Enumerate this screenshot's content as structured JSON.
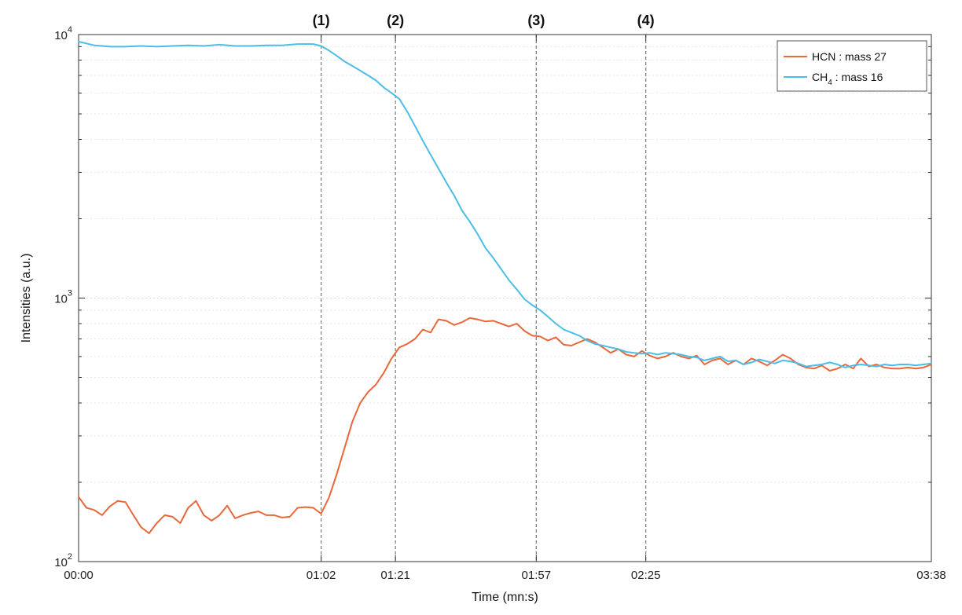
{
  "chart_data": {
    "type": "line",
    "title": "",
    "xlabel": "Time (mn:s)",
    "ylabel": "Intensities (a.u.)",
    "yscale": "log",
    "ylim": [
      100,
      10000
    ],
    "xlim": [
      "00:00",
      "03:38"
    ],
    "x_ticks": [
      "00:00",
      "01:02",
      "01:21",
      "01:57",
      "02:25",
      "03:38"
    ],
    "y_ticks": [
      {
        "value": 100,
        "base": "10",
        "exp": "2"
      },
      {
        "value": 1000,
        "base": "10",
        "exp": "3"
      },
      {
        "value": 10000,
        "base": "10",
        "exp": "4"
      }
    ],
    "grid": "dotted",
    "legend_position": "top-right",
    "events": [
      {
        "label": "(1)",
        "time": "01:02"
      },
      {
        "label": "(2)",
        "time": "01:21"
      },
      {
        "label": "(3)",
        "time": "01:57"
      },
      {
        "label": "(4)",
        "time": "02:25"
      }
    ],
    "series": [
      {
        "name": "HCN : mass 27",
        "legend_main": "HCN : mass 27",
        "legend_sub": "",
        "legend_tail": "",
        "color": "#e8683a",
        "points": [
          [
            "00:00",
            176
          ],
          [
            "00:02",
            160
          ],
          [
            "00:04",
            157
          ],
          [
            "00:06",
            150
          ],
          [
            "00:08",
            162
          ],
          [
            "00:10",
            170
          ],
          [
            "00:12",
            168
          ],
          [
            "00:14",
            150
          ],
          [
            "00:16",
            135
          ],
          [
            "00:18",
            128
          ],
          [
            "00:20",
            140
          ],
          [
            "00:22",
            150
          ],
          [
            "00:24",
            148
          ],
          [
            "00:26",
            140
          ],
          [
            "00:28",
            160
          ],
          [
            "00:30",
            170
          ],
          [
            "00:32",
            150
          ],
          [
            "00:34",
            143
          ],
          [
            "00:36",
            150
          ],
          [
            "00:38",
            163
          ],
          [
            "00:40",
            146
          ],
          [
            "00:42",
            150
          ],
          [
            "00:44",
            153
          ],
          [
            "00:46",
            155
          ],
          [
            "00:48",
            150
          ],
          [
            "00:50",
            150
          ],
          [
            "00:52",
            147
          ],
          [
            "00:54",
            148
          ],
          [
            "00:56",
            160
          ],
          [
            "00:58",
            161
          ],
          [
            "01:00",
            160
          ],
          [
            "01:02",
            152
          ],
          [
            "01:04",
            175
          ],
          [
            "01:06",
            215
          ],
          [
            "01:08",
            270
          ],
          [
            "01:10",
            340
          ],
          [
            "01:12",
            400
          ],
          [
            "01:14",
            440
          ],
          [
            "01:16",
            470
          ],
          [
            "01:18",
            520
          ],
          [
            "01:20",
            590
          ],
          [
            "01:22",
            650
          ],
          [
            "01:24",
            670
          ],
          [
            "01:26",
            700
          ],
          [
            "01:28",
            760
          ],
          [
            "01:30",
            740
          ],
          [
            "01:32",
            830
          ],
          [
            "01:34",
            820
          ],
          [
            "01:36",
            790
          ],
          [
            "01:38",
            810
          ],
          [
            "01:40",
            840
          ],
          [
            "01:42",
            830
          ],
          [
            "01:44",
            815
          ],
          [
            "01:46",
            820
          ],
          [
            "01:48",
            800
          ],
          [
            "01:50",
            780
          ],
          [
            "01:52",
            800
          ],
          [
            "01:54",
            750
          ],
          [
            "01:56",
            720
          ],
          [
            "01:58",
            715
          ],
          [
            "02:00",
            690
          ],
          [
            "02:02",
            710
          ],
          [
            "02:04",
            665
          ],
          [
            "02:06",
            660
          ],
          [
            "02:08",
            680
          ],
          [
            "02:10",
            700
          ],
          [
            "02:12",
            680
          ],
          [
            "02:14",
            650
          ],
          [
            "02:16",
            620
          ],
          [
            "02:18",
            640
          ],
          [
            "02:20",
            610
          ],
          [
            "02:22",
            600
          ],
          [
            "02:24",
            630
          ],
          [
            "02:26",
            605
          ],
          [
            "02:28",
            590
          ],
          [
            "02:30",
            600
          ],
          [
            "02:32",
            620
          ],
          [
            "02:34",
            600
          ],
          [
            "02:36",
            590
          ],
          [
            "02:38",
            605
          ],
          [
            "02:40",
            560
          ],
          [
            "02:42",
            580
          ],
          [
            "02:44",
            590
          ],
          [
            "02:46",
            560
          ],
          [
            "02:48",
            580
          ],
          [
            "02:50",
            560
          ],
          [
            "02:52",
            590
          ],
          [
            "02:54",
            575
          ],
          [
            "02:56",
            555
          ],
          [
            "02:58",
            580
          ],
          [
            "03:00",
            610
          ],
          [
            "03:02",
            590
          ],
          [
            "03:04",
            560
          ],
          [
            "03:06",
            545
          ],
          [
            "03:08",
            540
          ],
          [
            "03:10",
            555
          ],
          [
            "03:12",
            530
          ],
          [
            "03:14",
            540
          ],
          [
            "03:16",
            560
          ],
          [
            "03:18",
            540
          ],
          [
            "03:20",
            590
          ],
          [
            "03:22",
            550
          ],
          [
            "03:24",
            560
          ],
          [
            "03:26",
            545
          ],
          [
            "03:28",
            540
          ],
          [
            "03:30",
            540
          ],
          [
            "03:32",
            545
          ],
          [
            "03:34",
            540
          ],
          [
            "03:36",
            545
          ],
          [
            "03:38",
            560
          ]
        ]
      },
      {
        "name": "CH4 : mass 16",
        "legend_main": "CH",
        "legend_sub": "4",
        "legend_tail": " : mass 16",
        "color": "#4cbde8",
        "points": [
          [
            "00:00",
            9400
          ],
          [
            "00:04",
            9100
          ],
          [
            "00:08",
            9000
          ],
          [
            "00:12",
            9000
          ],
          [
            "00:16",
            9050
          ],
          [
            "00:20",
            9000
          ],
          [
            "00:24",
            9050
          ],
          [
            "00:28",
            9100
          ],
          [
            "00:32",
            9050
          ],
          [
            "00:36",
            9150
          ],
          [
            "00:40",
            9050
          ],
          [
            "00:44",
            9050
          ],
          [
            "00:48",
            9100
          ],
          [
            "00:52",
            9100
          ],
          [
            "00:56",
            9200
          ],
          [
            "01:00",
            9200
          ],
          [
            "01:02",
            9050
          ],
          [
            "01:04",
            8700
          ],
          [
            "01:06",
            8300
          ],
          [
            "01:08",
            7900
          ],
          [
            "01:10",
            7600
          ],
          [
            "01:12",
            7300
          ],
          [
            "01:14",
            7000
          ],
          [
            "01:16",
            6700
          ],
          [
            "01:18",
            6300
          ],
          [
            "01:20",
            6000
          ],
          [
            "01:22",
            5700
          ],
          [
            "01:24",
            5100
          ],
          [
            "01:26",
            4500
          ],
          [
            "01:28",
            3950
          ],
          [
            "01:30",
            3500
          ],
          [
            "01:32",
            3100
          ],
          [
            "01:34",
            2750
          ],
          [
            "01:36",
            2450
          ],
          [
            "01:38",
            2150
          ],
          [
            "01:40",
            1950
          ],
          [
            "01:42",
            1750
          ],
          [
            "01:44",
            1550
          ],
          [
            "01:46",
            1420
          ],
          [
            "01:48",
            1290
          ],
          [
            "01:50",
            1170
          ],
          [
            "01:52",
            1080
          ],
          [
            "01:54",
            990
          ],
          [
            "01:56",
            940
          ],
          [
            "01:58",
            900
          ],
          [
            "02:00",
            850
          ],
          [
            "02:02",
            800
          ],
          [
            "02:04",
            760
          ],
          [
            "02:06",
            740
          ],
          [
            "02:08",
            720
          ],
          [
            "02:10",
            690
          ],
          [
            "02:12",
            670
          ],
          [
            "02:14",
            660
          ],
          [
            "02:16",
            650
          ],
          [
            "02:18",
            640
          ],
          [
            "02:20",
            625
          ],
          [
            "02:22",
            620
          ],
          [
            "02:24",
            615
          ],
          [
            "02:26",
            620
          ],
          [
            "02:28",
            610
          ],
          [
            "02:30",
            620
          ],
          [
            "02:32",
            615
          ],
          [
            "02:34",
            610
          ],
          [
            "02:36",
            600
          ],
          [
            "02:38",
            595
          ],
          [
            "02:40",
            580
          ],
          [
            "02:42",
            590
          ],
          [
            "02:44",
            600
          ],
          [
            "02:46",
            575
          ],
          [
            "02:48",
            580
          ],
          [
            "02:50",
            560
          ],
          [
            "02:52",
            570
          ],
          [
            "02:54",
            585
          ],
          [
            "02:56",
            575
          ],
          [
            "02:58",
            565
          ],
          [
            "03:00",
            580
          ],
          [
            "03:02",
            575
          ],
          [
            "03:04",
            565
          ],
          [
            "03:06",
            550
          ],
          [
            "03:08",
            555
          ],
          [
            "03:10",
            560
          ],
          [
            "03:12",
            570
          ],
          [
            "03:14",
            560
          ],
          [
            "03:16",
            545
          ],
          [
            "03:18",
            555
          ],
          [
            "03:20",
            560
          ],
          [
            "03:22",
            555
          ],
          [
            "03:24",
            550
          ],
          [
            "03:26",
            560
          ],
          [
            "03:28",
            555
          ],
          [
            "03:30",
            560
          ],
          [
            "03:32",
            560
          ],
          [
            "03:34",
            555
          ],
          [
            "03:36",
            560
          ],
          [
            "03:38",
            565
          ]
        ]
      }
    ]
  }
}
